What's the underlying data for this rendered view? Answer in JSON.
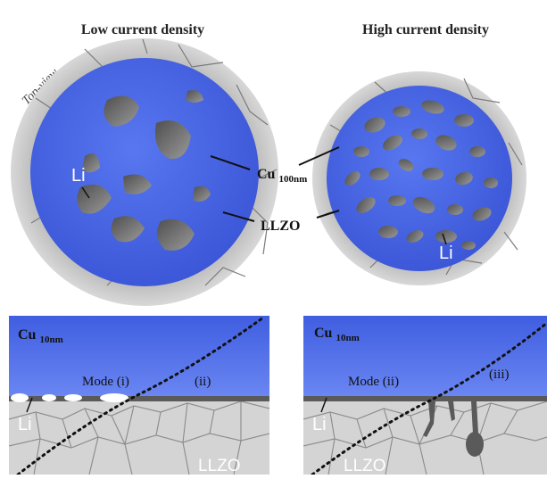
{
  "titles": {
    "low": "Low current density",
    "high": "High current density"
  },
  "labels": {
    "top_view": "Top-view",
    "li": "Li",
    "cu_top": "Cu",
    "cu_top_sub": "100nm",
    "llzo": "LLZO",
    "cu_bottom": "Cu",
    "cu_bottom_sub": "10nm",
    "mode_i": "Mode (i)",
    "mode_ii_left": "(ii)",
    "mode_ii_right": "Mode (ii)",
    "mode_iii": "(iii)"
  },
  "colors": {
    "cu_blue": "#4a67e6",
    "llzo_ring": "#c9c9c9",
    "grain_gray": "#d2d2d2",
    "void_gray": "#6c6c6c",
    "grain_line": "#8c8c8c"
  }
}
